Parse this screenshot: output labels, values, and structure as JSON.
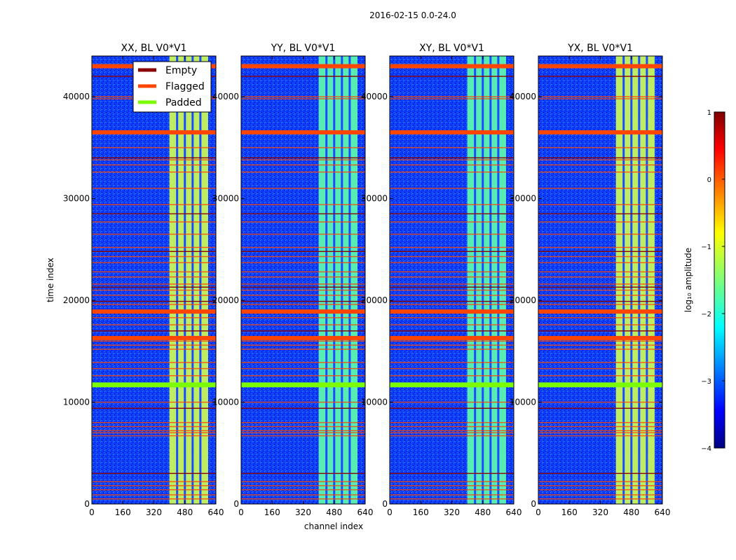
{
  "chart_data": {
    "type": "heatmap",
    "suptitle": "2016-02-15 0.0-24.0",
    "xlabel": "channel index",
    "ylabel": "time index",
    "x_ticks": [
      "0",
      "160",
      "320",
      "480",
      "640"
    ],
    "y_ticks": [
      "0",
      "10000",
      "20000",
      "30000",
      "40000"
    ],
    "xlim": [
      0,
      640
    ],
    "ylim": [
      0,
      44000
    ],
    "panels": [
      {
        "title": "XX, BL V0*V1"
      },
      {
        "title": "YY, BL V0*V1"
      },
      {
        "title": "XY, BL V0*V1"
      },
      {
        "title": "YX, BL V0*V1"
      }
    ],
    "colorbar": {
      "label": "log₁₀ amplitude",
      "range": [
        -4,
        1
      ],
      "ticks": [
        "1",
        "0",
        "−1",
        "−2",
        "−3",
        "−4"
      ],
      "tick_values": [
        1,
        0,
        -1,
        -2,
        -3,
        -4
      ],
      "colormap": "jet"
    },
    "legend": {
      "position": "upper-right of first panel",
      "entries": [
        {
          "label": "Empty",
          "color": "#8b0000"
        },
        {
          "label": "Flagged",
          "color": "#ff4500"
        },
        {
          "label": "Padded",
          "color": "#7cfc00"
        }
      ]
    },
    "signal_band_channels": [
      400,
      600
    ],
    "flagged_rows_thick": [
      43000,
      36500,
      18900,
      16300
    ],
    "padded_rows": [
      11800,
      11600
    ],
    "flagged_rows_thin": [
      40000,
      39800,
      35000,
      33800,
      33300,
      32600,
      31000,
      29400,
      27700,
      26500,
      25200,
      24300,
      23700,
      22800,
      22300,
      21600,
      21000,
      20500,
      19600,
      18300,
      17600,
      16000,
      15600,
      15200,
      13900,
      13300,
      12600,
      10000,
      8000,
      7600,
      7200,
      7000,
      6700,
      2200,
      1800,
      1400,
      900,
      500
    ],
    "empty_rows": [
      42000,
      34000,
      28500,
      24800,
      21300,
      19900,
      17000,
      9400,
      3000
    ]
  }
}
